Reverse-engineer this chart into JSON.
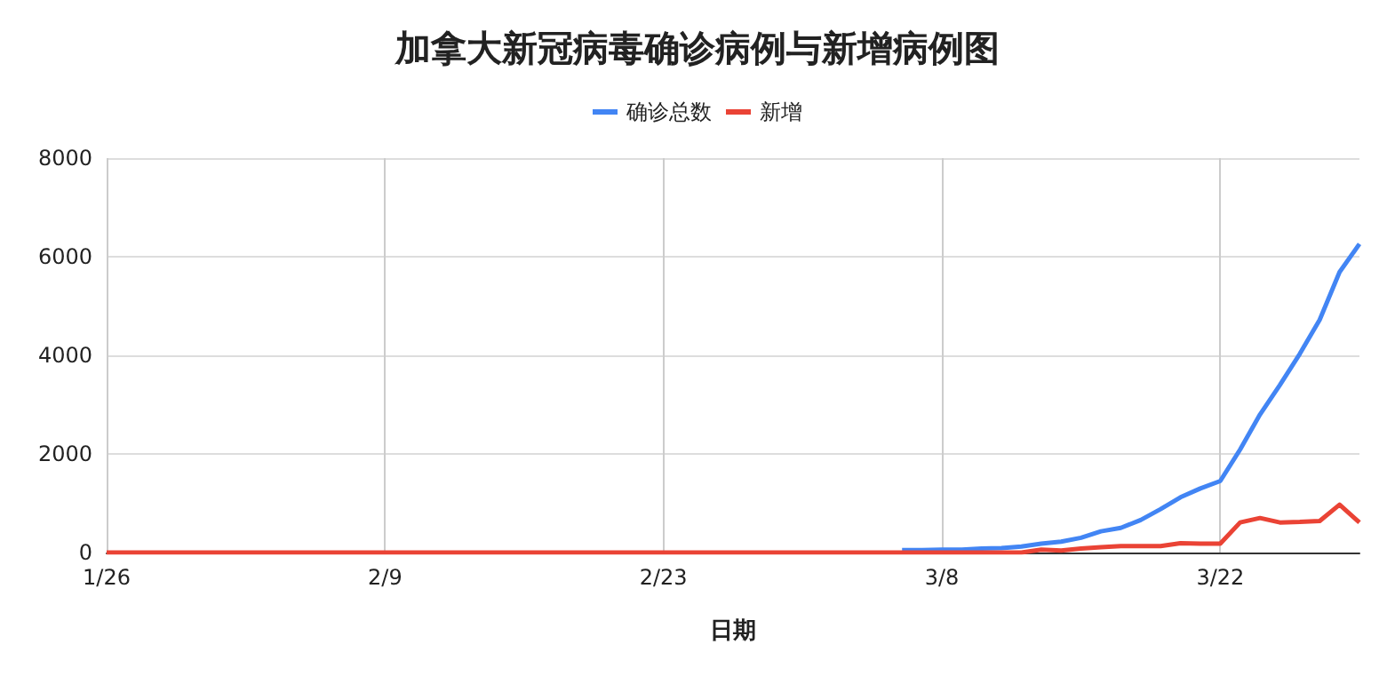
{
  "chart_data": {
    "type": "line",
    "title": "加拿大新冠病毒确诊病例与新增病例图",
    "xlabel": "日期",
    "categories": [
      "1/26",
      null,
      null,
      null,
      null,
      null,
      null,
      null,
      null,
      null,
      null,
      null,
      null,
      null,
      "2/9",
      null,
      null,
      null,
      null,
      null,
      null,
      null,
      null,
      null,
      null,
      null,
      null,
      null,
      "2/23",
      null,
      null,
      null,
      null,
      null,
      null,
      null,
      null,
      null,
      null,
      null,
      null,
      null,
      "3/8",
      null,
      null,
      null,
      null,
      null,
      null,
      null,
      null,
      null,
      null,
      null,
      null,
      null,
      "3/22",
      null,
      null,
      null,
      null,
      null,
      null,
      null
    ],
    "series": [
      {
        "name": "确诊总数",
        "color": "#4285f4",
        "values": [
          null,
          null,
          null,
          null,
          null,
          null,
          null,
          null,
          null,
          null,
          null,
          null,
          null,
          null,
          null,
          null,
          null,
          null,
          null,
          null,
          null,
          null,
          null,
          null,
          null,
          null,
          null,
          null,
          null,
          null,
          null,
          null,
          null,
          null,
          null,
          null,
          null,
          null,
          null,
          null,
          50,
          50,
          60,
          60,
          80,
          90,
          120,
          180,
          220,
          300,
          430,
          500,
          660,
          880,
          1120,
          1300,
          1450,
          2090,
          2800,
          3400,
          4030,
          4720,
          5690,
          6260
        ]
      },
      {
        "name": "新增",
        "color": "#ea4335",
        "values": [
          0,
          0,
          0,
          0,
          0,
          0,
          0,
          0,
          0,
          0,
          0,
          0,
          0,
          0,
          0,
          0,
          0,
          0,
          0,
          0,
          0,
          0,
          0,
          0,
          0,
          0,
          0,
          0,
          0,
          0,
          0,
          0,
          0,
          0,
          0,
          0,
          0,
          0,
          0,
          0,
          0,
          0,
          0,
          0,
          0,
          0,
          0,
          60,
          40,
          80,
          110,
          130,
          130,
          130,
          190,
          180,
          180,
          610,
          700,
          610,
          620,
          640,
          970,
          610
        ]
      }
    ],
    "ylim": [
      0,
      8000
    ],
    "yticks": [
      0,
      2000,
      4000,
      6000,
      8000
    ],
    "grid": true,
    "legend": "top",
    "marker": "none",
    "line_style": "solid"
  }
}
